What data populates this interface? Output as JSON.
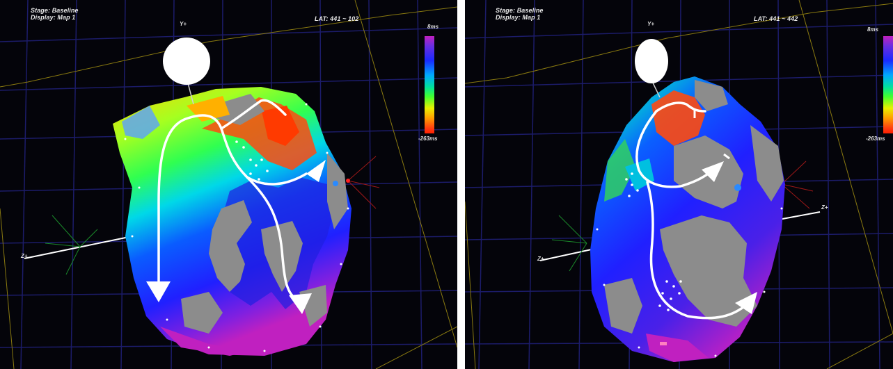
{
  "left_panel": {
    "stage": "Stage: Baseline",
    "display": "Display: Map 1",
    "lat_range": "LAT: 441 ~ 102",
    "y_axis": "Y+",
    "z_axis": "Z+",
    "scale_top": "8ms",
    "scale_bottom": "-263ms"
  },
  "right_panel": {
    "stage": "Stage: Baseline",
    "display": "Display: Map 1",
    "lat_range": "LAT: 441 ~ 442",
    "y_axis": "Y+",
    "z_axis_left": "Z+",
    "z_axis_right": "Z+",
    "scale_top": "8ms",
    "scale_bottom": "-263ms"
  },
  "colors": {
    "background": "#04040a",
    "grid": "#1c1c6a",
    "frame_line": "#8a7a10",
    "tissue_gray": "#8c8c8c",
    "arrow": "#ffffff"
  }
}
